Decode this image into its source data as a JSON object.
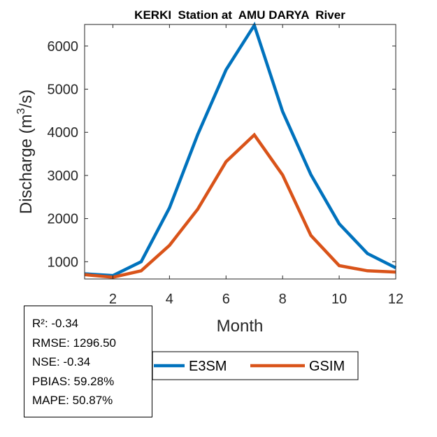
{
  "chart_data": {
    "type": "line",
    "title": "KERKI  Station at  AMU DARYA  River",
    "xlabel": "Month",
    "ylabel_prefix": "Discharge (m",
    "ylabel_sup": "3",
    "ylabel_suffix": "/s)",
    "xlim": [
      1,
      12
    ],
    "ylim": [
      600,
      6500
    ],
    "xticks": [
      2,
      4,
      6,
      8,
      10,
      12
    ],
    "yticks": [
      1000,
      2000,
      3000,
      4000,
      5000,
      6000
    ],
    "x": [
      1,
      2,
      3,
      4,
      5,
      6,
      7,
      8,
      9,
      10,
      11,
      12
    ],
    "series": [
      {
        "name": "E3SM",
        "color": "#0072BD",
        "values": [
          720,
          680,
          1000,
          2250,
          3950,
          5450,
          6480,
          4480,
          3020,
          1880,
          1190,
          860
        ]
      },
      {
        "name": "GSIM",
        "color": "#D95319",
        "values": [
          700,
          640,
          790,
          1380,
          2220,
          3320,
          3940,
          3010,
          1610,
          910,
          790,
          760
        ]
      }
    ],
    "legend_position": "bottom"
  },
  "stats": {
    "r2": "R²: -0.34",
    "rmse": "RMSE: 1296.50",
    "nse": "NSE: -0.34",
    "pbias": "PBIAS: 59.28%",
    "mape": "MAPE: 50.87%"
  }
}
